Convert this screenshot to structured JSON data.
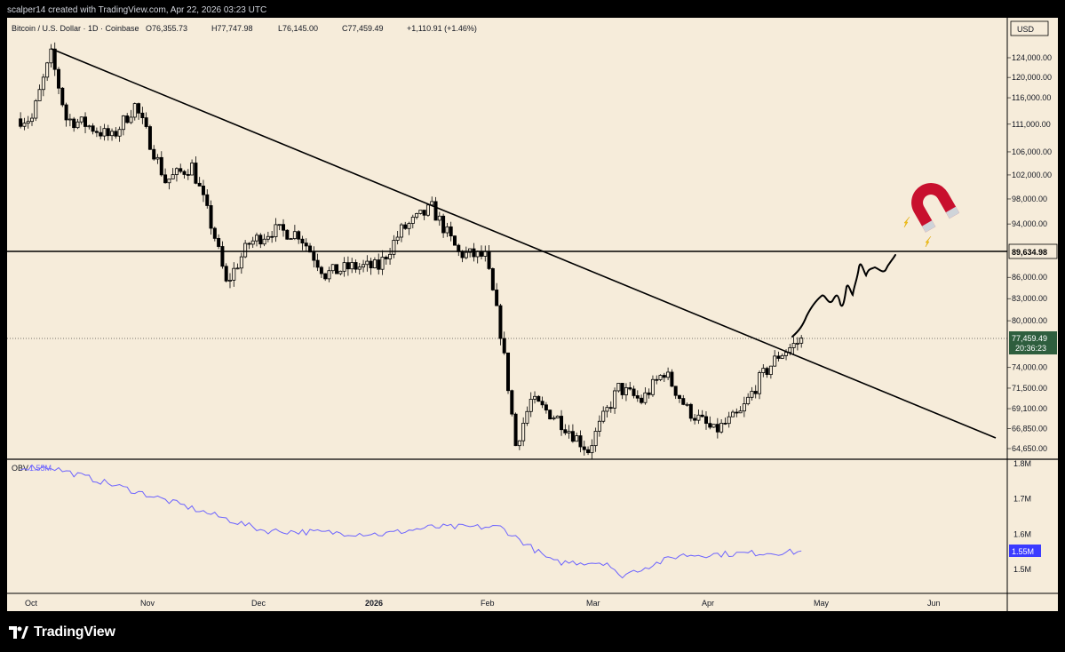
{
  "header": {
    "attribution": "scalper14 created with TradingView.com, Apr 22, 2026 03:23 UTC"
  },
  "legend": {
    "symbol": "Bitcoin / U.S. Dollar · 1D · Coinbase",
    "open": "O76,355.73",
    "high": "H77,747.98",
    "low": "L76,145.00",
    "close": "C77,459.49",
    "change": "+1,110.91 (+1.46%)"
  },
  "currency": "USD",
  "price_axis": {
    "labels": [
      "124,000.00",
      "120,000.00",
      "116,000.00",
      "111,000.00",
      "106,000.00",
      "102,000.00",
      "98,000.00",
      "94,000.00",
      "86,000.00",
      "83,000.00",
      "80,000.00",
      "74,000.00",
      "71,500.00",
      "69,100.00",
      "66,850.00",
      "64,650.00"
    ],
    "horizontal_line_label": "89,634.98",
    "last_price_label": "77,459.49",
    "countdown_label": "20:36:23"
  },
  "obv": {
    "name": "OBV",
    "value": "1.55M",
    "axis_labels": [
      "1.8M",
      "1.7M",
      "1.6M",
      "1.5M"
    ],
    "last_label": "1.55M"
  },
  "time_axis": {
    "labels": [
      "Oct",
      "Nov",
      "Dec",
      "2026",
      "Feb",
      "Mar",
      "Apr",
      "May",
      "Jun"
    ]
  },
  "footer": {
    "brand": "TradingView"
  },
  "colors": {
    "background": "#f6ecda",
    "frame": "#000000",
    "candle": "#000000",
    "obv_line": "#6c63ff",
    "last_price_badge": "#2e5e3e",
    "obv_badge": "#3b3bff",
    "magnet_red": "#c8102e"
  },
  "annotations": [
    "descending-trendline",
    "horizontal-resistance-line",
    "hand-drawn-projection-path",
    "magnet-emoji"
  ],
  "chart_data": {
    "type": "candlestick",
    "title": "Bitcoin / U.S. Dollar · 1D · Coinbase",
    "ohlc_last": {
      "open": 76355.73,
      "high": 77747.98,
      "low": 76145.0,
      "close": 77459.49
    },
    "candles_approx_close": [
      {
        "date": "2025-10-01",
        "close": 112000
      },
      {
        "date": "2025-10-06",
        "close": 124500
      },
      {
        "date": "2025-10-10",
        "close": 112000
      },
      {
        "date": "2025-10-15",
        "close": 111000
      },
      {
        "date": "2025-10-22",
        "close": 108500
      },
      {
        "date": "2025-10-28",
        "close": 114500
      },
      {
        "date": "2025-11-05",
        "close": 101000
      },
      {
        "date": "2025-11-12",
        "close": 103500
      },
      {
        "date": "2025-11-18",
        "close": 92000
      },
      {
        "date": "2025-11-21",
        "close": 85000
      },
      {
        "date": "2025-11-27",
        "close": 91000
      },
      {
        "date": "2025-12-03",
        "close": 93000
      },
      {
        "date": "2025-12-10",
        "close": 92500
      },
      {
        "date": "2025-12-17",
        "close": 86500
      },
      {
        "date": "2025-12-24",
        "close": 87500
      },
      {
        "date": "2025-12-31",
        "close": 87500
      },
      {
        "date": "2026-01-06",
        "close": 93000
      },
      {
        "date": "2026-01-14",
        "close": 96500
      },
      {
        "date": "2026-01-21",
        "close": 89500
      },
      {
        "date": "2026-01-28",
        "close": 89000
      },
      {
        "date": "2026-02-01",
        "close": 78500
      },
      {
        "date": "2026-02-05",
        "close": 65000
      },
      {
        "date": "2026-02-09",
        "close": 70000
      },
      {
        "date": "2026-02-16",
        "close": 68000
      },
      {
        "date": "2026-02-24",
        "close": 64500
      },
      {
        "date": "2026-03-04",
        "close": 71500
      },
      {
        "date": "2026-03-10",
        "close": 70000
      },
      {
        "date": "2026-03-16",
        "close": 73500
      },
      {
        "date": "2026-03-22",
        "close": 69000
      },
      {
        "date": "2026-03-29",
        "close": 66500
      },
      {
        "date": "2026-04-05",
        "close": 68500
      },
      {
        "date": "2026-04-10",
        "close": 72500
      },
      {
        "date": "2026-04-15",
        "close": 75500
      },
      {
        "date": "2026-04-21",
        "close": 77459.49
      }
    ],
    "horizontal_level": 89634.98,
    "trendline": [
      {
        "date": "2025-10-06",
        "price": 125000
      },
      {
        "date": "2026-06-15",
        "price": 65500
      }
    ],
    "obv_series": [
      {
        "date": "2025-10-06",
        "value": 1.79
      },
      {
        "date": "2025-11-01",
        "value": 1.71
      },
      {
        "date": "2025-12-01",
        "value": 1.61
      },
      {
        "date": "2026-01-01",
        "value": 1.6
      },
      {
        "date": "2026-01-14",
        "value": 1.62
      },
      {
        "date": "2026-02-01",
        "value": 1.62
      },
      {
        "date": "2026-02-15",
        "value": 1.52
      },
      {
        "date": "2026-03-01",
        "value": 1.52
      },
      {
        "date": "2026-03-04",
        "value": 1.48
      },
      {
        "date": "2026-03-20",
        "value": 1.54
      },
      {
        "date": "2026-04-21",
        "value": 1.55
      }
    ],
    "ylim": [
      63500,
      127000
    ],
    "x_labels": [
      "Oct",
      "Nov",
      "Dec",
      "2026",
      "Feb",
      "Mar",
      "Apr",
      "May",
      "Jun"
    ]
  }
}
